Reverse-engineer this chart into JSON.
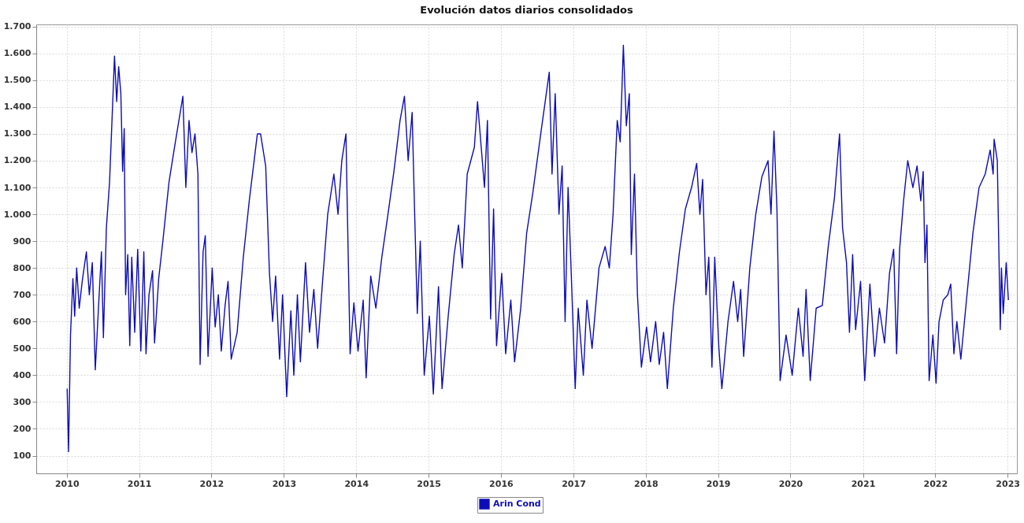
{
  "chart_data": {
    "type": "line",
    "title": "Evolución datos diarios consolidados",
    "xlim": [
      "2009-07-31",
      "2023-02-17"
    ],
    "xticks": [
      "2010",
      "2011",
      "2012",
      "2013",
      "2014",
      "2015",
      "2016",
      "2017",
      "2018",
      "2019",
      "2020",
      "2021",
      "2022",
      "2023"
    ],
    "ylim": [
      34,
      1708
    ],
    "yticks": [
      {
        "value": 100,
        "label": "100"
      },
      {
        "value": 200,
        "label": "200"
      },
      {
        "value": 300,
        "label": "300"
      },
      {
        "value": 400,
        "label": "400"
      },
      {
        "value": 500,
        "label": "500"
      },
      {
        "value": 600,
        "label": "600"
      },
      {
        "value": 700,
        "label": "700"
      },
      {
        "value": 800,
        "label": "800"
      },
      {
        "value": 900,
        "label": "900"
      },
      {
        "value": 1000,
        "label": "1.000"
      },
      {
        "value": 1100,
        "label": "1.100"
      },
      {
        "value": 1200,
        "label": "1.200"
      },
      {
        "value": 1300,
        "label": "1.300"
      },
      {
        "value": 1400,
        "label": "1.400"
      },
      {
        "value": 1500,
        "label": "1.500"
      },
      {
        "value": 1600,
        "label": "1.600"
      },
      {
        "value": 1700,
        "label": "1.700"
      }
    ],
    "grid": true,
    "legend": "bottom",
    "x": [
      "2010-01-03",
      "2010-01-10",
      "2010-01-20",
      "2010-02-01",
      "2010-02-10",
      "2010-02-20",
      "2010-03-05",
      "2010-03-20",
      "2010-04-10",
      "2010-04-25",
      "2010-05-10",
      "2010-05-25",
      "2010-06-10",
      "2010-06-25",
      "2010-07-05",
      "2010-07-20",
      "2010-08-05",
      "2010-08-20",
      "2010-08-30",
      "2010-09-10",
      "2010-09-20",
      "2010-10-01",
      "2010-10-10",
      "2010-10-18",
      "2010-10-25",
      "2010-11-05",
      "2010-11-15",
      "2010-11-25",
      "2010-12-10",
      "2010-12-25",
      "2011-01-10",
      "2011-01-25",
      "2011-02-05",
      "2011-02-20",
      "2011-03-10",
      "2011-03-20",
      "2011-04-10",
      "2011-05-01",
      "2011-06-01",
      "2011-07-01",
      "2011-08-10",
      "2011-08-25",
      "2011-09-10",
      "2011-09-25",
      "2011-10-10",
      "2011-10-25",
      "2011-11-05",
      "2011-11-20",
      "2011-12-01",
      "2011-12-15",
      "2012-01-05",
      "2012-01-20",
      "2012-02-05",
      "2012-02-20",
      "2012-03-10",
      "2012-03-25",
      "2012-04-10",
      "2012-05-10",
      "2012-06-10",
      "2012-07-10",
      "2012-08-20",
      "2012-09-05",
      "2012-10-01",
      "2012-10-20",
      "2012-11-05",
      "2012-11-20",
      "2012-12-10",
      "2012-12-25",
      "2013-01-15",
      "2013-02-05",
      "2013-02-20",
      "2013-03-10",
      "2013-03-25",
      "2013-04-20",
      "2013-05-10",
      "2013-06-01",
      "2013-06-20",
      "2013-07-15",
      "2013-08-10",
      "2013-09-10",
      "2013-10-01",
      "2013-10-20",
      "2013-11-10",
      "2013-11-20",
      "2013-12-01",
      "2013-12-20",
      "2014-01-10",
      "2014-02-05",
      "2014-02-20",
      "2014-03-15",
      "2014-04-10",
      "2014-05-10",
      "2014-06-10",
      "2014-07-10",
      "2014-08-10",
      "2014-09-01",
      "2014-09-20",
      "2014-10-10",
      "2014-10-20",
      "2014-11-05",
      "2014-11-20",
      "2014-12-10",
      "2015-01-05",
      "2015-01-25",
      "2015-02-20",
      "2015-03-10",
      "2015-04-10",
      "2015-05-10",
      "2015-06-01",
      "2015-06-20",
      "2015-07-15",
      "2015-08-20",
      "2015-09-05",
      "2015-10-10",
      "2015-10-25",
      "2015-11-10",
      "2015-11-25",
      "2015-12-10",
      "2016-01-05",
      "2016-01-25",
      "2016-02-20",
      "2016-03-10",
      "2016-04-10",
      "2016-05-10",
      "2016-06-10",
      "2016-07-20",
      "2016-09-01",
      "2016-09-15",
      "2016-10-01",
      "2016-10-20",
      "2016-11-05",
      "2016-11-20",
      "2016-12-05",
      "2016-12-20",
      "2017-01-10",
      "2017-01-25",
      "2017-02-20",
      "2017-03-10",
      "2017-04-05",
      "2017-05-10",
      "2017-06-10",
      "2017-07-01",
      "2017-07-20",
      "2017-08-10",
      "2017-08-25",
      "2017-09-10",
      "2017-09-25",
      "2017-10-10",
      "2017-10-20",
      "2017-11-05",
      "2017-11-20",
      "2017-12-10",
      "2018-01-05",
      "2018-01-25",
      "2018-02-20",
      "2018-03-10",
      "2018-04-01",
      "2018-04-20",
      "2018-05-20",
      "2018-06-20",
      "2018-07-20",
      "2018-08-20",
      "2018-09-15",
      "2018-10-01",
      "2018-10-15",
      "2018-11-01",
      "2018-11-15",
      "2018-12-01",
      "2018-12-15",
      "2019-01-05",
      "2019-01-20",
      "2019-02-20",
      "2019-03-20",
      "2019-04-10",
      "2019-04-25",
      "2019-05-10",
      "2019-06-10",
      "2019-07-10",
      "2019-08-10",
      "2019-09-10",
      "2019-09-25",
      "2019-10-10",
      "2019-10-25",
      "2019-11-10",
      "2019-12-10",
      "2020-01-10",
      "2020-02-10",
      "2020-03-05",
      "2020-03-20",
      "2020-04-10",
      "2020-05-10",
      "2020-06-10",
      "2020-07-10",
      "2020-08-10",
      "2020-09-05",
      "2020-09-20",
      "2020-10-10",
      "2020-10-25",
      "2020-11-10",
      "2020-11-25",
      "2020-12-20",
      "2021-01-10",
      "2021-02-05",
      "2021-03-01",
      "2021-03-25",
      "2021-04-20",
      "2021-05-15",
      "2021-06-05",
      "2021-06-20",
      "2021-07-05",
      "2021-07-25",
      "2021-08-15",
      "2021-09-10",
      "2021-10-01",
      "2021-10-20",
      "2021-11-01",
      "2021-11-10",
      "2021-11-20",
      "2021-12-01",
      "2021-12-20",
      "2022-01-05",
      "2022-01-20",
      "2022-02-10",
      "2022-03-05",
      "2022-03-20",
      "2022-04-05",
      "2022-04-20",
      "2022-05-10",
      "2022-06-10",
      "2022-07-10",
      "2022-08-10",
      "2022-09-10",
      "2022-10-05",
      "2022-10-20",
      "2022-10-25",
      "2022-11-10",
      "2022-11-25",
      "2022-12-01",
      "2022-12-10",
      "2022-12-25",
      "2023-01-05"
    ],
    "series": [
      {
        "name": "Arin Cond",
        "color": "#0c0cb8",
        "values": [
          350,
          115,
          550,
          760,
          620,
          800,
          650,
          750,
          860,
          700,
          820,
          420,
          650,
          860,
          540,
          950,
          1120,
          1400,
          1590,
          1420,
          1550,
          1450,
          1160,
          1320,
          700,
          850,
          510,
          840,
          560,
          870,
          490,
          860,
          480,
          700,
          790,
          520,
          760,
          900,
          1120,
          1260,
          1440,
          1100,
          1350,
          1230,
          1300,
          1150,
          440,
          860,
          920,
          470,
          800,
          580,
          700,
          490,
          660,
          750,
          460,
          560,
          840,
          1050,
          1300,
          1300,
          1180,
          780,
          600,
          770,
          460,
          700,
          320,
          640,
          400,
          700,
          450,
          820,
          560,
          720,
          500,
          750,
          1000,
          1150,
          1000,
          1200,
          1300,
          900,
          480,
          670,
          490,
          680,
          390,
          770,
          650,
          840,
          1000,
          1160,
          1350,
          1440,
          1200,
          1380,
          1080,
          630,
          900,
          400,
          620,
          330,
          730,
          350,
          620,
          850,
          960,
          800,
          1150,
          1250,
          1420,
          1100,
          1350,
          610,
          1020,
          510,
          780,
          480,
          680,
          450,
          650,
          930,
          1080,
          1300,
          1530,
          1150,
          1450,
          1000,
          1180,
          600,
          1100,
          800,
          350,
          650,
          400,
          680,
          500,
          800,
          880,
          800,
          1000,
          1350,
          1270,
          1630,
          1330,
          1450,
          850,
          1150,
          700,
          430,
          580,
          450,
          600,
          440,
          560,
          350,
          650,
          860,
          1020,
          1100,
          1190,
          1000,
          1130,
          700,
          840,
          430,
          840,
          500,
          350,
          600,
          750,
          600,
          720,
          470,
          800,
          1000,
          1140,
          1200,
          1000,
          1310,
          1020,
          380,
          550,
          400,
          650,
          470,
          720,
          380,
          650,
          660,
          880,
          1060,
          1300,
          950,
          820,
          560,
          850,
          570,
          750,
          380,
          740,
          470,
          650,
          520,
          780,
          870,
          480,
          870,
          1050,
          1200,
          1100,
          1180,
          1050,
          1160,
          820,
          960,
          380,
          550,
          370,
          600,
          680,
          700,
          740,
          480,
          600,
          460,
          700,
          930,
          1100,
          1150,
          1240,
          1150,
          1280,
          1200,
          570,
          800,
          630,
          820,
          680
        ]
      }
    ]
  }
}
